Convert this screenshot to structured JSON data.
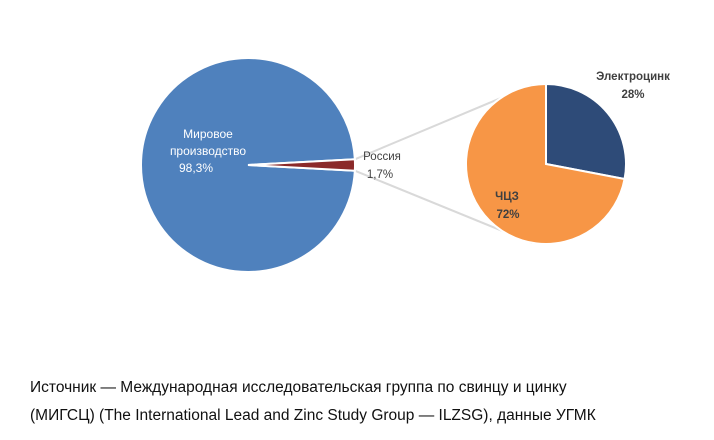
{
  "chart_data": [
    {
      "type": "pie",
      "slices": [
        {
          "label_lines": [
            "Мировое",
            "производство"
          ],
          "value_label": "98,3%",
          "value": 98.3,
          "color": "#4f81bd"
        },
        {
          "label_lines": [
            "Россия"
          ],
          "value_label": "1,7%",
          "value": 1.7,
          "color": "#8b2a2a"
        }
      ]
    },
    {
      "type": "pie",
      "slices": [
        {
          "label_lines": [
            "Электроцинк"
          ],
          "value_label": "28%",
          "value": 28,
          "color": "#2e4b78"
        },
        {
          "label_lines": [
            "ЧЦЗ"
          ],
          "value_label": "72%",
          "value": 72,
          "color": "#f79646"
        }
      ]
    }
  ],
  "source": {
    "line1": "Источник — Международная исследовательская группа по свинцу и цинку",
    "line2": "(МИГСЦ) (The International Lead and Zinc Study Group — ILZSG), данные УГМК"
  },
  "colors": {
    "connector": "#d9d9d9",
    "background": "#ffffff"
  }
}
